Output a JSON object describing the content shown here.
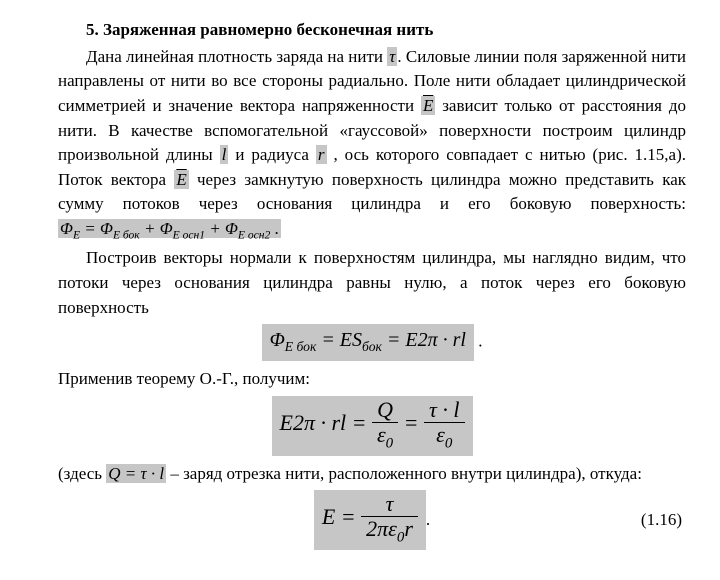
{
  "title": "5. Заряженная равномерно бесконечная нить",
  "p1a": "Дана линейная плотность заряда на нити ",
  "tau": "τ",
  "p1b": ". Силовые линии поля заряженной нити направлены от нити во все стороны радиально. Поле нити обладает цилиндрической симметрией и значение вектора напряженности ",
  "Evec": "E",
  "p1c": " зависит только от расстояния до нити. В качестве вспомогательной «гауссовой» поверхности построим цилиндр произвольной длины ",
  "l": "l",
  "p1d": " и радиуса ",
  "r": "r",
  "p1e": " , ось которого совпадает с нитью (рис. 1.15,а). Поток вектора ",
  "p1f": " через замкнутую поверхность цилиндра можно представить как сумму потоков через основания цилиндра и его боковую поверхность: ",
  "sum": {
    "lhs": "Φ",
    "lhs_sub": "E",
    "eq": " = Φ",
    "t1s": "E бок",
    "plus": " + Φ",
    "t2s": "E осн1",
    "t3s": "E осн2",
    "dot": " ."
  },
  "p2": "Построив векторы нормали к поверхностям цилиндра, мы наглядно видим, что потоки через основания цилиндра равны нулю, а поток через его боковую поверхность",
  "flux": {
    "lhs": "Φ",
    "lhs_sub": "E бок",
    "mid": " = ES",
    "mid_sub": "бок",
    "rhs": " = E2π · rl",
    "dot": " ."
  },
  "p3": "Применив теорему О.-Г., получим:",
  "main": {
    "lhs": "E2π · rl = ",
    "n1": "Q",
    "d1": "ε",
    "d1sub": "0",
    "mid": " = ",
    "n2": "τ · l",
    "d2": "ε",
    "d2sub": "0"
  },
  "p4a": "(здесь ",
  "Qexpr": "Q = τ · l",
  "p4b": " – заряд отрезка нити, расположенного внутри цилиндра),  откуда:",
  "final": {
    "lhs": "E = ",
    "num": "τ",
    "den_a": "2πε",
    "den_sub": "0",
    "den_b": "r"
  },
  "eqnum": "(1.16)"
}
